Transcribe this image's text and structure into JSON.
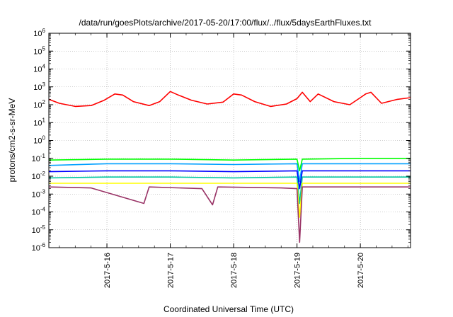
{
  "chart_data": {
    "type": "line",
    "title": "/data/run/goesPlots/archive/2017-05-20/17:00/flux/../flux/5daysEarthFluxes.txt",
    "xlabel": "Coordinated Universal Time (UTC)",
    "ylabel": "protons/cm2-s-sr-MeV",
    "yscale": "log",
    "ylim": [
      1e-06,
      1000000.0
    ],
    "xlim": [
      "2017-05-15 02:00",
      "2017-05-20 19:00"
    ],
    "grid": true,
    "x_ticks": [
      "2017-5-16",
      "2017-5-17",
      "2017-5-18",
      "2017-5-19",
      "2017-5-20"
    ],
    "y_ticks": [
      {
        "base": "10",
        "exp": "-6"
      },
      {
        "base": "10",
        "exp": "-5"
      },
      {
        "base": "10",
        "exp": "-4"
      },
      {
        "base": "10",
        "exp": "-3"
      },
      {
        "base": "10",
        "exp": "-2"
      },
      {
        "base": "10",
        "exp": "-1"
      },
      {
        "base": "10",
        "exp": "0"
      },
      {
        "base": "10",
        "exp": "1"
      },
      {
        "base": "10",
        "exp": "2"
      },
      {
        "base": "10",
        "exp": "3"
      },
      {
        "base": "10",
        "exp": "4"
      },
      {
        "base": "10",
        "exp": "5"
      },
      {
        "base": "10",
        "exp": "6"
      }
    ],
    "series": [
      {
        "color": "#ff0000",
        "points": [
          [
            "2017-05-15 02:00",
            200
          ],
          [
            "2017-05-15 06:00",
            120
          ],
          [
            "2017-05-15 12:00",
            80
          ],
          [
            "2017-05-15 18:00",
            90
          ],
          [
            "2017-05-15 23:00",
            180
          ],
          [
            "2017-05-16 03:00",
            400
          ],
          [
            "2017-05-16 06:00",
            350
          ],
          [
            "2017-05-16 10:00",
            150
          ],
          [
            "2017-05-16 16:00",
            90
          ],
          [
            "2017-05-16 20:00",
            150
          ],
          [
            "2017-05-17 00:00",
            550
          ],
          [
            "2017-05-17 03:00",
            350
          ],
          [
            "2017-05-17 08:00",
            180
          ],
          [
            "2017-05-17 14:00",
            110
          ],
          [
            "2017-05-17 20:00",
            140
          ],
          [
            "2017-05-18 00:00",
            400
          ],
          [
            "2017-05-18 03:00",
            350
          ],
          [
            "2017-05-18 08:00",
            150
          ],
          [
            "2017-05-18 14:00",
            80
          ],
          [
            "2017-05-18 20:00",
            110
          ],
          [
            "2017-05-19 00:00",
            220
          ],
          [
            "2017-05-19 02:00",
            500
          ],
          [
            "2017-05-19 05:00",
            150
          ],
          [
            "2017-05-19 08:00",
            400
          ],
          [
            "2017-05-19 14:00",
            150
          ],
          [
            "2017-05-19 20:00",
            100
          ],
          [
            "2017-05-20 00:00",
            250
          ],
          [
            "2017-05-20 02:00",
            400
          ],
          [
            "2017-05-20 04:00",
            500
          ],
          [
            "2017-05-20 08:00",
            120
          ],
          [
            "2017-05-20 14:00",
            200
          ],
          [
            "2017-05-20 19:00",
            250
          ]
        ]
      },
      {
        "color": "#00ff00",
        "points": [
          [
            "2017-05-15 02:00",
            0.08
          ],
          [
            "2017-05-16 00:00",
            0.09
          ],
          [
            "2017-05-17 00:00",
            0.09
          ],
          [
            "2017-05-18 00:00",
            0.08
          ],
          [
            "2017-05-19 00:00",
            0.09
          ],
          [
            "2017-05-19 01:00",
            0.02
          ],
          [
            "2017-05-19 02:00",
            0.09
          ],
          [
            "2017-05-20 00:00",
            0.1
          ],
          [
            "2017-05-20 19:00",
            0.1
          ]
        ]
      },
      {
        "color": "#00a0ff",
        "points": [
          [
            "2017-05-15 02:00",
            0.04
          ],
          [
            "2017-05-16 00:00",
            0.05
          ],
          [
            "2017-05-17 00:00",
            0.05
          ],
          [
            "2017-05-18 00:00",
            0.045
          ],
          [
            "2017-05-19 00:00",
            0.05
          ],
          [
            "2017-05-19 01:00",
            0.005
          ],
          [
            "2017-05-19 02:00",
            0.05
          ],
          [
            "2017-05-20 00:00",
            0.05
          ],
          [
            "2017-05-20 19:00",
            0.05
          ]
        ]
      },
      {
        "color": "#0000ff",
        "points": [
          [
            "2017-05-15 02:00",
            0.018
          ],
          [
            "2017-05-16 00:00",
            0.02
          ],
          [
            "2017-05-17 00:00",
            0.02
          ],
          [
            "2017-05-18 00:00",
            0.018
          ],
          [
            "2017-05-19 00:00",
            0.02
          ],
          [
            "2017-05-19 01:00",
            0.002
          ],
          [
            "2017-05-19 02:00",
            0.02
          ],
          [
            "2017-05-20 00:00",
            0.02
          ],
          [
            "2017-05-20 19:00",
            0.02
          ]
        ]
      },
      {
        "color": "#00c8a0",
        "points": [
          [
            "2017-05-15 02:00",
            0.008
          ],
          [
            "2017-05-16 00:00",
            0.009
          ],
          [
            "2017-05-17 00:00",
            0.009
          ],
          [
            "2017-05-18 00:00",
            0.008
          ],
          [
            "2017-05-19 00:00",
            0.009
          ],
          [
            "2017-05-19 01:00",
            0.0003
          ],
          [
            "2017-05-19 02:00",
            0.009
          ],
          [
            "2017-05-20 00:00",
            0.009
          ],
          [
            "2017-05-20 19:00",
            0.009
          ]
        ]
      },
      {
        "color": "#ffff00",
        "points": [
          [
            "2017-05-15 02:00",
            0.004
          ],
          [
            "2017-05-16 00:00",
            0.004
          ],
          [
            "2017-05-17 00:00",
            0.004
          ],
          [
            "2017-05-18 00:00",
            0.004
          ],
          [
            "2017-05-19 00:00",
            0.004
          ],
          [
            "2017-05-19 01:00",
            5e-05
          ],
          [
            "2017-05-19 02:00",
            0.004
          ],
          [
            "2017-05-20 00:00",
            0.004
          ],
          [
            "2017-05-20 19:00",
            0.004
          ]
        ]
      },
      {
        "color": "#993366",
        "points": [
          [
            "2017-05-15 02:00",
            0.0025
          ],
          [
            "2017-05-15 18:00",
            0.0022
          ],
          [
            "2017-05-16 14:00",
            0.0003
          ],
          [
            "2017-05-16 16:00",
            0.0025
          ],
          [
            "2017-05-17 12:00",
            0.002
          ],
          [
            "2017-05-17 16:00",
            0.00025
          ],
          [
            "2017-05-17 18:00",
            0.0025
          ],
          [
            "2017-05-18 18:00",
            0.0022
          ],
          [
            "2017-05-19 00:00",
            0.002
          ],
          [
            "2017-05-19 01:00",
            2e-06
          ],
          [
            "2017-05-19 02:00",
            0.0025
          ],
          [
            "2017-05-20 00:00",
            0.0025
          ],
          [
            "2017-05-20 19:00",
            0.0025
          ]
        ]
      }
    ]
  }
}
